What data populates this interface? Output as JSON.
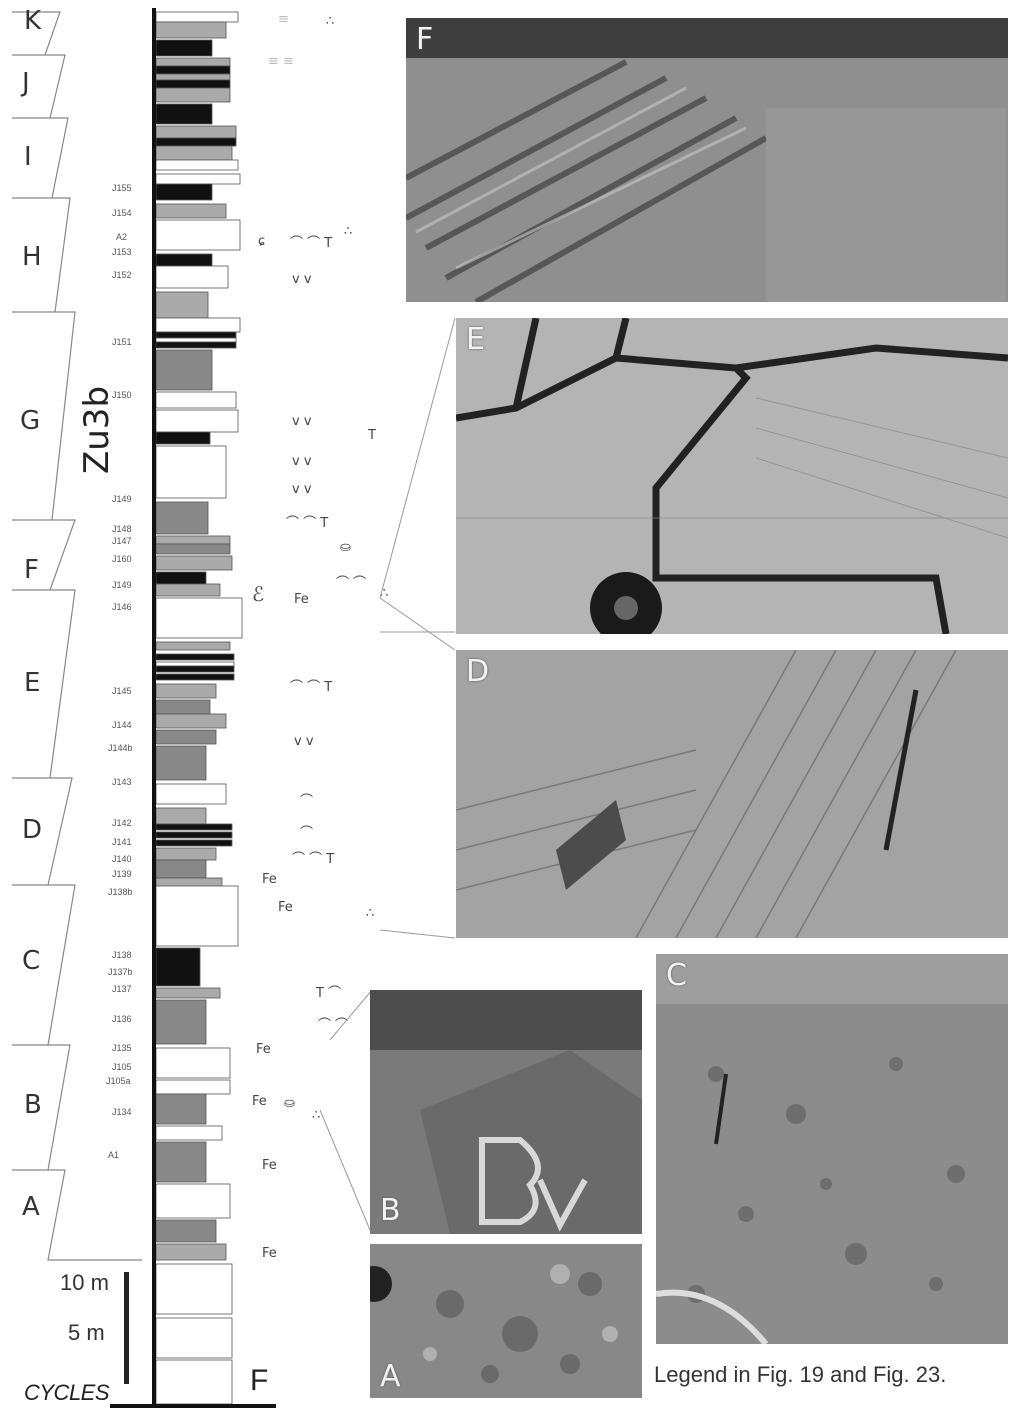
{
  "unit_name": "Zu3b",
  "cycles_label": "CYCLES",
  "column_label": "F",
  "scale": {
    "label_10": "10 m",
    "label_5": "5 m"
  },
  "legend_note": "Legend in Fig. 19 and Fig. 23.",
  "cycles": [
    "K",
    "J",
    "I",
    "H",
    "G",
    "F",
    "E",
    "D",
    "C",
    "B",
    "A"
  ],
  "bed_labels": [
    "J155",
    "J154",
    "A2",
    "J153",
    "J152",
    "J151",
    "J150",
    "J149",
    "J148",
    "J147",
    "J160",
    "J149",
    "J146",
    "J145",
    "J144",
    "J144b",
    "J143",
    "J142",
    "J141",
    "J140",
    "J139",
    "J138b",
    "J138",
    "J137b",
    "J137",
    "J136",
    "J135",
    "J105",
    "J105a",
    "J134",
    "A1"
  ],
  "iron_label": "Fe",
  "photos": [
    {
      "label": "F"
    },
    {
      "label": "E"
    },
    {
      "label": "D"
    },
    {
      "label": "C"
    },
    {
      "label": "B"
    },
    {
      "label": "A"
    }
  ]
}
